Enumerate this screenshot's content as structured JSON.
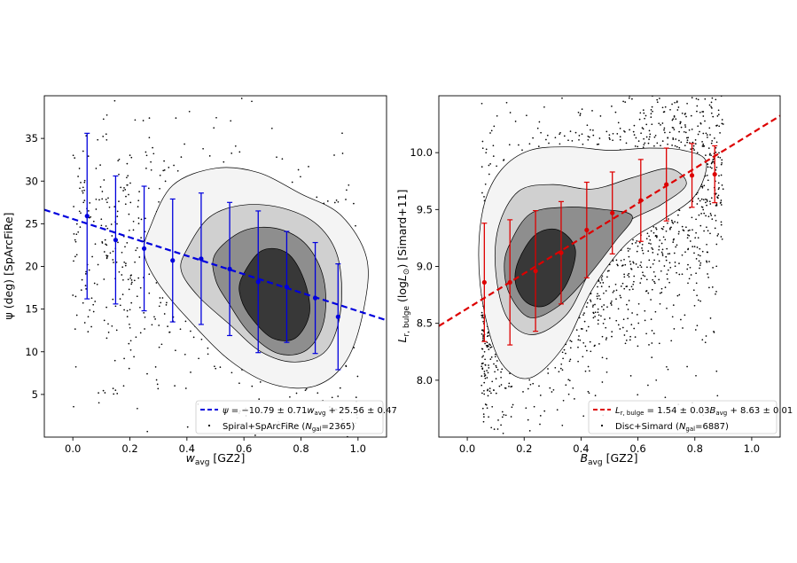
{
  "chart_data": [
    {
      "type": "scatter",
      "panel": "left",
      "xlabel": "w_avg [GZ2]",
      "xlabel_main": "w",
      "xlabel_sub": "avg",
      "xlabel_rest": " [GZ2]",
      "ylabel": "ψ (deg) [SpArcFiRe]",
      "xlim": [
        -0.1,
        1.1
      ],
      "ylim": [
        0,
        40
      ],
      "xticks": [
        0.0,
        0.2,
        0.4,
        0.6,
        0.8,
        1.0
      ],
      "xtick_labels": [
        "0.0",
        "0.2",
        "0.4",
        "0.6",
        "0.8",
        "1.0"
      ],
      "yticks": [
        5,
        10,
        15,
        20,
        25,
        30,
        35
      ],
      "ytick_labels": [
        "5",
        "10",
        "15",
        "20",
        "25",
        "30",
        "35"
      ],
      "binned": {
        "x": [
          0.05,
          0.15,
          0.25,
          0.35,
          0.45,
          0.55,
          0.65,
          0.75,
          0.85,
          0.93
        ],
        "y": [
          25.9,
          23.1,
          22.1,
          20.7,
          20.9,
          19.7,
          18.2,
          17.6,
          16.3,
          14.1
        ],
        "err": [
          9.7,
          7.5,
          7.3,
          7.2,
          7.7,
          7.8,
          8.3,
          6.5,
          6.5,
          6.2
        ]
      },
      "fit": {
        "slope": -10.79,
        "intercept": 25.56,
        "color": "#0000dd"
      },
      "legend": {
        "fit_label": "ψ = −10.79 ± 0.71w_avg + 25.56 ± 0.47",
        "scatter_label": "Spiral+SpArcFiRe (N_gal=2365)"
      },
      "contour_center": [
        0.72,
        17.0
      ],
      "contour_rings": [
        [
          [
            0.27,
            24.5
          ],
          [
            0.35,
            29.5
          ],
          [
            0.5,
            31.5
          ],
          [
            0.65,
            31.0
          ],
          [
            0.8,
            28.5
          ],
          [
            0.94,
            26.0
          ],
          [
            1.03,
            21.0
          ],
          [
            1.02,
            15.0
          ],
          [
            0.96,
            9.0
          ],
          [
            0.85,
            6.0
          ],
          [
            0.7,
            6.2
          ],
          [
            0.55,
            9.0
          ],
          [
            0.4,
            14.0
          ],
          [
            0.3,
            18.0
          ],
          [
            0.25,
            21.5
          ]
        ],
        [
          [
            0.4,
            22.0
          ],
          [
            0.48,
            25.8
          ],
          [
            0.6,
            27.2
          ],
          [
            0.74,
            26.8
          ],
          [
            0.86,
            24.8
          ],
          [
            0.93,
            21.0
          ],
          [
            0.94,
            15.0
          ],
          [
            0.89,
            10.2
          ],
          [
            0.78,
            8.8
          ],
          [
            0.66,
            10.0
          ],
          [
            0.55,
            13.2
          ],
          [
            0.44,
            16.5
          ],
          [
            0.38,
            19.5
          ]
        ],
        [
          [
            0.5,
            21.5
          ],
          [
            0.6,
            24.2
          ],
          [
            0.72,
            24.4
          ],
          [
            0.82,
            22.5
          ],
          [
            0.88,
            18.5
          ],
          [
            0.88,
            13.5
          ],
          [
            0.82,
            10.2
          ],
          [
            0.72,
            9.8
          ],
          [
            0.62,
            12.2
          ],
          [
            0.55,
            15.5
          ],
          [
            0.5,
            18.5
          ]
        ],
        [
          [
            0.59,
            18.5
          ],
          [
            0.66,
            21.8
          ],
          [
            0.75,
            21.6
          ],
          [
            0.81,
            18.5
          ],
          [
            0.83,
            14.5
          ],
          [
            0.78,
            11.6
          ],
          [
            0.7,
            11.6
          ],
          [
            0.63,
            13.8
          ],
          [
            0.59,
            16.2
          ]
        ]
      ],
      "contour_fills": [
        "#f4f4f4",
        "#d0d0d0",
        "#8e8e8e",
        "#383838"
      ]
    },
    {
      "type": "scatter",
      "panel": "right",
      "xlabel": "B_avg [GZ2]",
      "xlabel_main": "B",
      "xlabel_sub": "avg",
      "xlabel_rest": " [GZ2]",
      "ylabel": "L_r,bulge (logL_⊙) [Simard+11]",
      "xlim": [
        -0.1,
        1.1
      ],
      "ylim": [
        7.5,
        10.5
      ],
      "xticks": [
        0.0,
        0.2,
        0.4,
        0.6,
        0.8,
        1.0
      ],
      "xtick_labels": [
        "0.0",
        "0.2",
        "0.4",
        "0.6",
        "0.8",
        "1.0"
      ],
      "yticks": [
        8.0,
        8.5,
        9.0,
        9.5,
        10.0
      ],
      "ytick_labels": [
        "8.0",
        "8.5",
        "9.0",
        "9.5",
        "10.0"
      ],
      "binned": {
        "x": [
          0.06,
          0.15,
          0.24,
          0.33,
          0.42,
          0.51,
          0.61,
          0.7,
          0.79,
          0.87
        ],
        "y": [
          8.86,
          8.86,
          8.96,
          9.12,
          9.32,
          9.47,
          9.58,
          9.72,
          9.8,
          9.81
        ],
        "err": [
          0.52,
          0.55,
          0.53,
          0.45,
          0.42,
          0.36,
          0.36,
          0.32,
          0.28,
          0.25
        ]
      },
      "fit": {
        "slope": 1.54,
        "intercept": 8.63,
        "color": "#dd0000"
      },
      "legend": {
        "fit_label": "L_r,bulge = 1.54 ± 0.03B_avg + 8.63 ± 0.01",
        "scatter_label": "Disc+Simard (N_gal=6887)"
      },
      "contour_center": [
        0.25,
        9.0
      ],
      "contour_rings": [
        [
          [
            0.06,
            9.55
          ],
          [
            0.12,
            9.85
          ],
          [
            0.22,
            10.02
          ],
          [
            0.36,
            10.05
          ],
          [
            0.5,
            10.02
          ],
          [
            0.64,
            10.04
          ],
          [
            0.76,
            10.02
          ],
          [
            0.84,
            9.92
          ],
          [
            0.8,
            9.62
          ],
          [
            0.68,
            9.4
          ],
          [
            0.56,
            9.2
          ],
          [
            0.44,
            8.8
          ],
          [
            0.34,
            8.3
          ],
          [
            0.22,
            8.02
          ],
          [
            0.12,
            8.15
          ],
          [
            0.06,
            8.6
          ],
          [
            0.04,
            9.1
          ]
        ],
        [
          [
            0.11,
            9.35
          ],
          [
            0.18,
            9.66
          ],
          [
            0.3,
            9.72
          ],
          [
            0.44,
            9.68
          ],
          [
            0.58,
            9.78
          ],
          [
            0.71,
            9.86
          ],
          [
            0.77,
            9.72
          ],
          [
            0.68,
            9.54
          ],
          [
            0.54,
            9.35
          ],
          [
            0.44,
            9.0
          ],
          [
            0.35,
            8.58
          ],
          [
            0.23,
            8.4
          ],
          [
            0.14,
            8.55
          ],
          [
            0.1,
            8.95
          ]
        ],
        [
          [
            0.15,
            9.2
          ],
          [
            0.22,
            9.46
          ],
          [
            0.34,
            9.52
          ],
          [
            0.48,
            9.5
          ],
          [
            0.58,
            9.44
          ],
          [
            0.52,
            9.22
          ],
          [
            0.42,
            8.9
          ],
          [
            0.32,
            8.65
          ],
          [
            0.22,
            8.55
          ],
          [
            0.15,
            8.75
          ],
          [
            0.13,
            9.0
          ]
        ],
        [
          [
            0.18,
            9.05
          ],
          [
            0.24,
            9.28
          ],
          [
            0.32,
            9.32
          ],
          [
            0.38,
            9.15
          ],
          [
            0.35,
            8.85
          ],
          [
            0.28,
            8.66
          ],
          [
            0.21,
            8.68
          ],
          [
            0.17,
            8.85
          ]
        ]
      ],
      "contour_fills": [
        "#f4f4f4",
        "#d0d0d0",
        "#8e8e8e",
        "#383838"
      ]
    }
  ]
}
